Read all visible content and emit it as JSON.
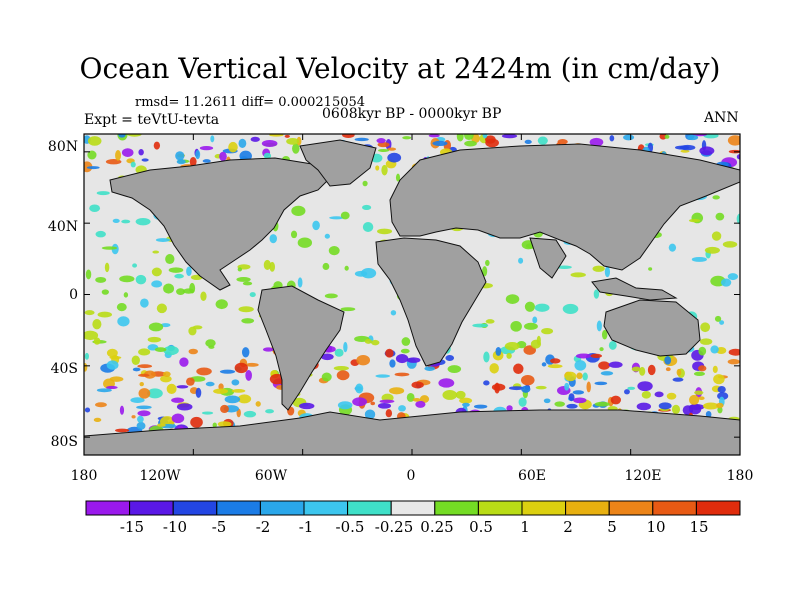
{
  "figure": {
    "title": "Ocean Vertical Velocity at 2424m (in cm/day)",
    "stats": "rmsd= 11.2611 diff= 0.000215054",
    "experiment": "Expt = teVtU-tevta",
    "period": "0608kyr BP - 0000kyr BP",
    "season": "ANN"
  },
  "map": {
    "projection": "cylindrical equidistant",
    "lon_range": [
      -180,
      180
    ],
    "lat_range": [
      -90,
      90
    ],
    "land_color": "#a0a0a0",
    "x_ticks": [
      {
        "lon": -180,
        "label": "180"
      },
      {
        "lon": -120,
        "label": "120W"
      },
      {
        "lon": -60,
        "label": "60W"
      },
      {
        "lon": 0,
        "label": "0"
      },
      {
        "lon": 60,
        "label": "60E"
      },
      {
        "lon": 120,
        "label": "120E"
      },
      {
        "lon": 180,
        "label": "180"
      }
    ],
    "y_ticks": [
      {
        "lat": 80,
        "label": "80N"
      },
      {
        "lat": 40,
        "label": "40N"
      },
      {
        "lat": 0,
        "label": "0"
      },
      {
        "lat": -40,
        "label": "40S"
      },
      {
        "lat": -80,
        "label": "80S"
      }
    ]
  },
  "colorbar": {
    "colors": [
      "#9a19ec",
      "#5a18e6",
      "#2346e3",
      "#1b7ce6",
      "#2aa7ea",
      "#3cc6ee",
      "#3fe0c8",
      "#e8e8e8",
      "#74dc24",
      "#b9dc16",
      "#dcd010",
      "#e8b010",
      "#ec8418",
      "#e85a14",
      "#e02c0c"
    ],
    "labels": [
      "-15",
      "-10",
      "-5",
      "-2",
      "-1",
      "-0.5",
      "-0.25",
      "0.25",
      "0.5",
      "1",
      "2",
      "5",
      "10",
      "15"
    ]
  }
}
